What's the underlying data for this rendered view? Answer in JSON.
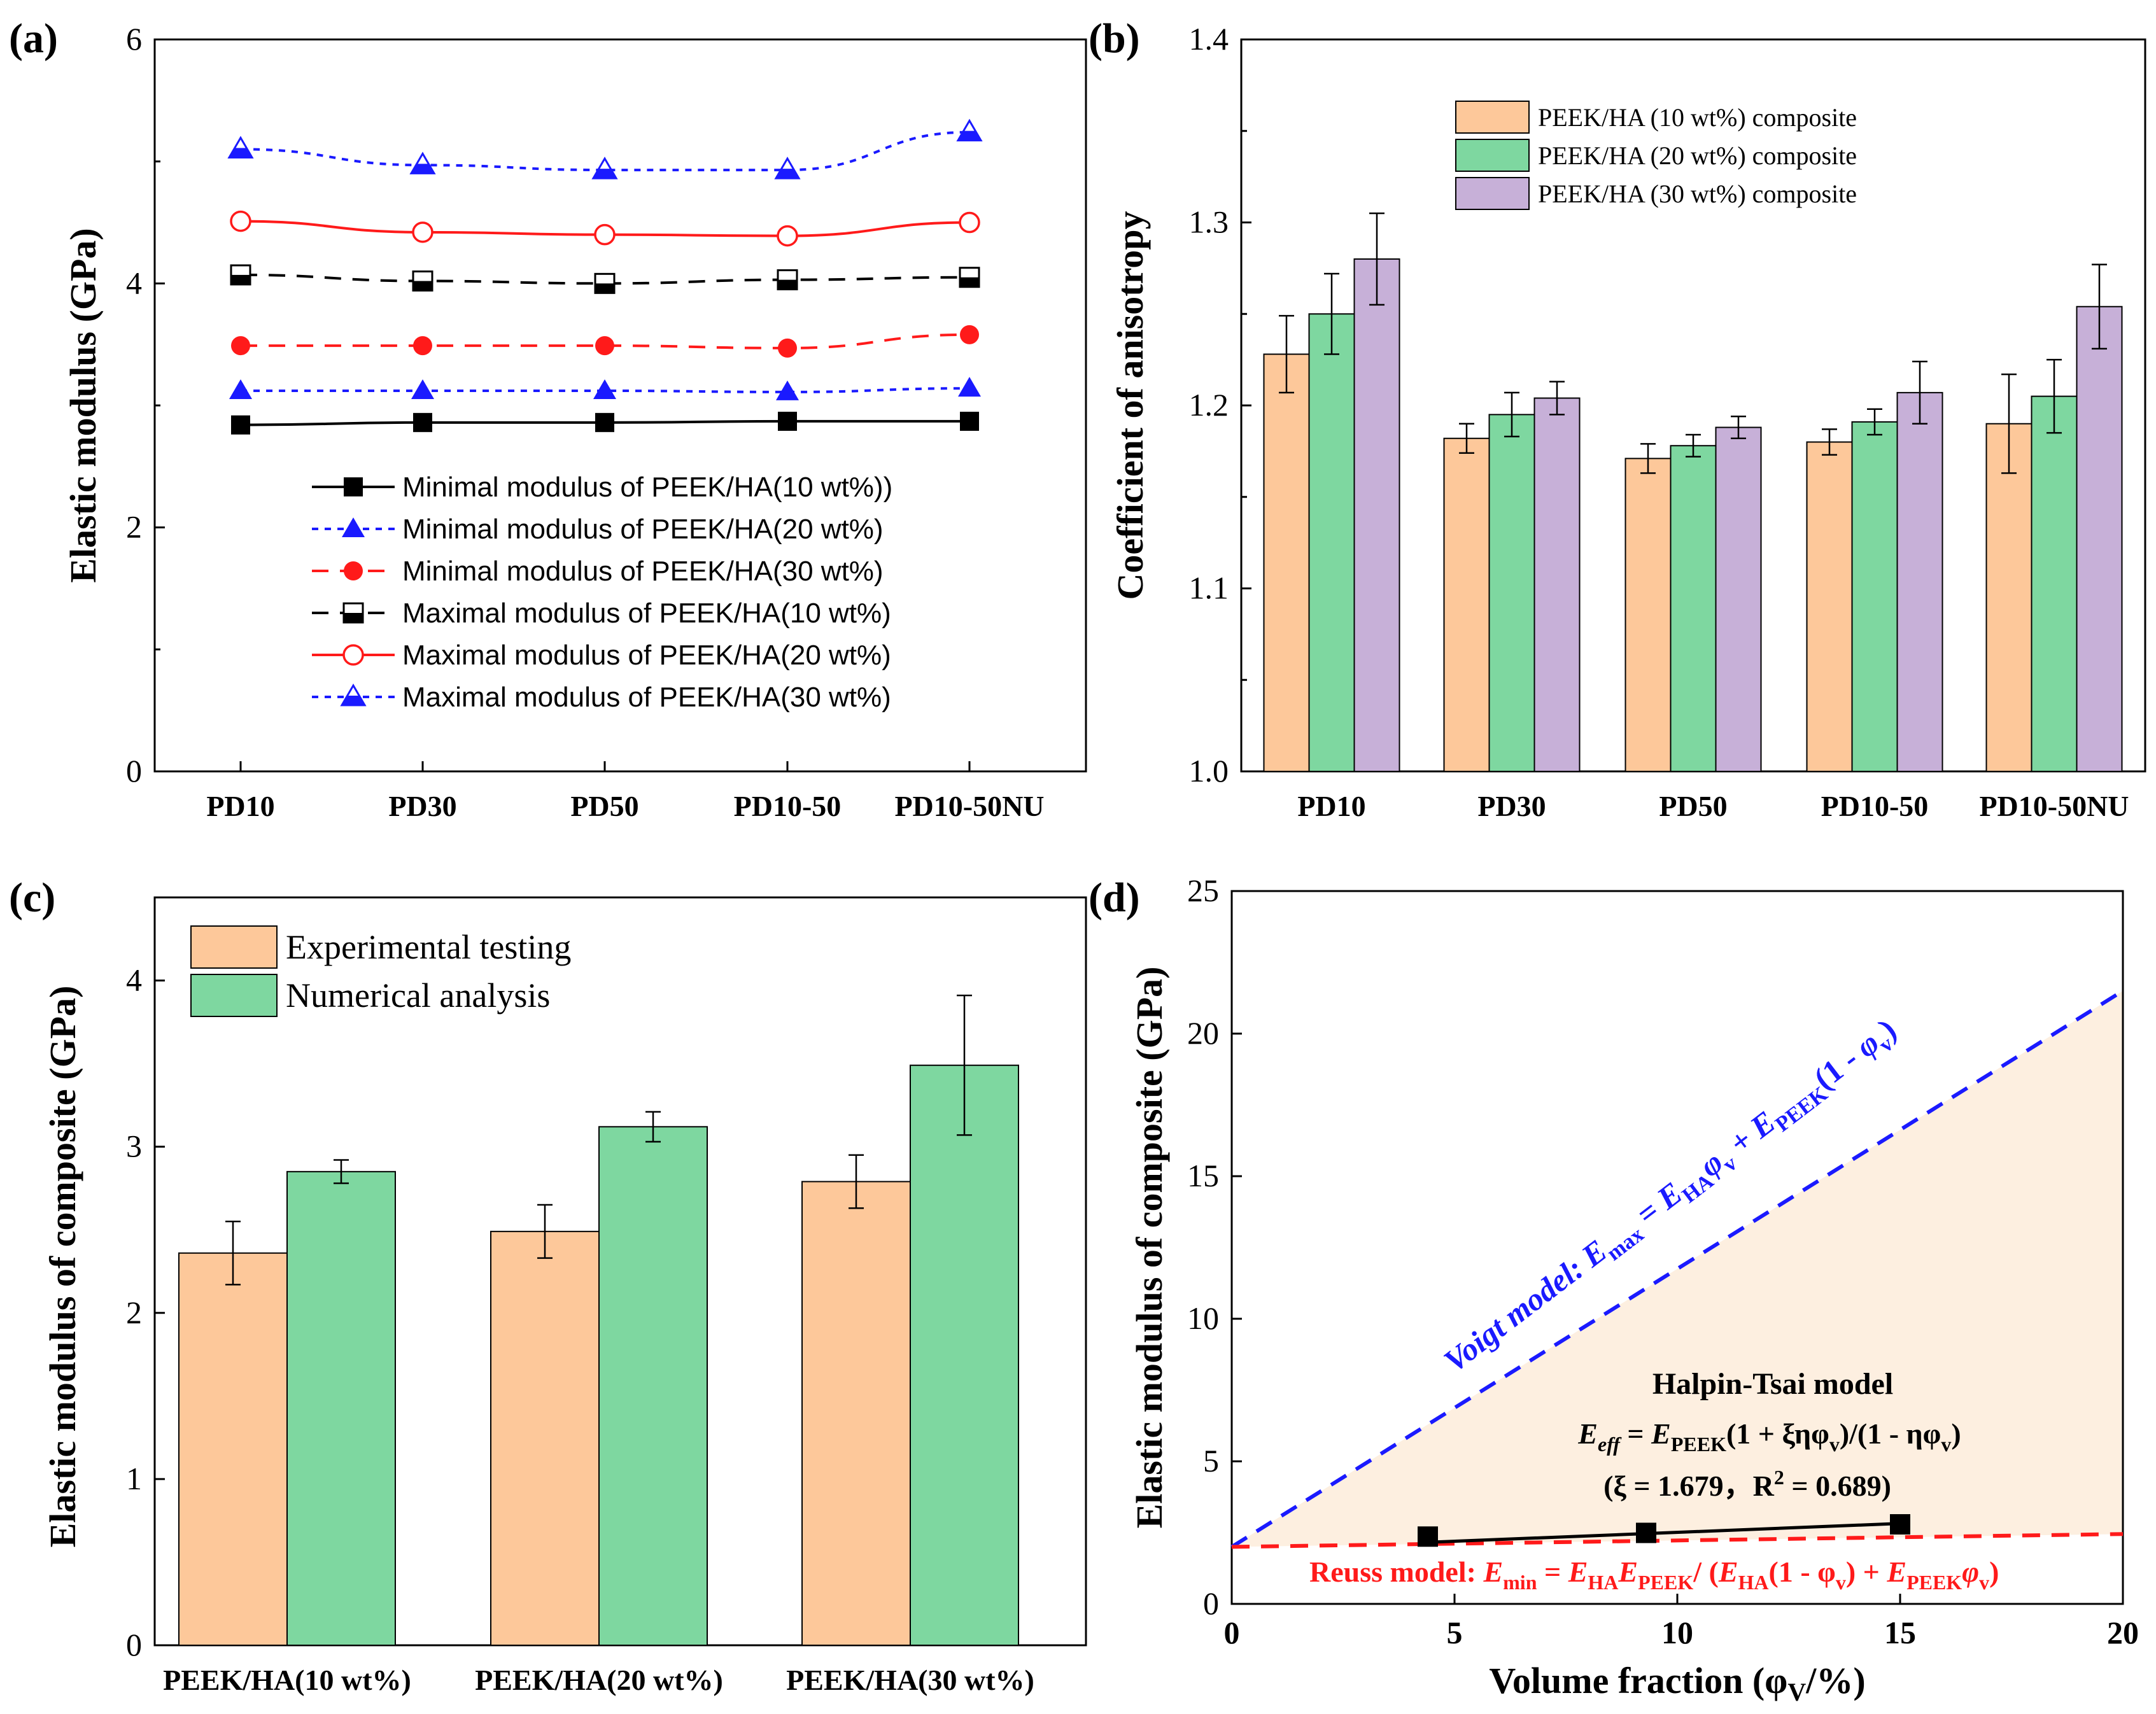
{
  "colors": {
    "black": "#000000",
    "blue": "#1a1aff",
    "red": "#ff1a1a",
    "orange": "#fdc89a",
    "green": "#7ed7a0",
    "purple": "#c7b0d8",
    "fill_d": "#fdefe0"
  },
  "chart_data": [
    {
      "id": "a",
      "panel_label": "(a)",
      "type": "line",
      "ylabel": "Elastic modulus (GPa)",
      "ylim": [
        0,
        6
      ],
      "yticks": [
        "0",
        "2",
        "4",
        "6"
      ],
      "categories": [
        "PD10",
        "PD30",
        "PD50",
        "PD10-50",
        "PD10-50NU"
      ],
      "series": [
        {
          "name": "Minimal modulus of PEEK/HA(10 wt%))",
          "values": [
            2.84,
            2.86,
            2.86,
            2.87,
            2.87
          ],
          "color": "#000000",
          "dash": "solid",
          "marker": "square-filled"
        },
        {
          "name": "Minimal modulus of PEEK/HA(20 wt%)",
          "values": [
            3.12,
            3.12,
            3.12,
            3.11,
            3.14
          ],
          "color": "#1a1aff",
          "dash": "dot",
          "marker": "triangle-filled"
        },
        {
          "name": "Minimal modulus of PEEK/HA(30 wt%)",
          "values": [
            3.49,
            3.49,
            3.49,
            3.47,
            3.58
          ],
          "color": "#ff1a1a",
          "dash": "dash",
          "marker": "circle-filled"
        },
        {
          "name": "Maximal modulus of PEEK/HA(10 wt%)",
          "values": [
            4.07,
            4.02,
            4.0,
            4.03,
            4.05
          ],
          "color": "#000000",
          "dash": "dash",
          "marker": "square-half"
        },
        {
          "name": "Maximal modulus of PEEK/HA(20 wt%)",
          "values": [
            4.51,
            4.42,
            4.4,
            4.39,
            4.5
          ],
          "color": "#ff1a1a",
          "dash": "solid",
          "marker": "circle-open"
        },
        {
          "name": "Maximal modulus of PEEK/HA(30 wt%)",
          "values": [
            5.1,
            4.97,
            4.93,
            4.93,
            5.24
          ],
          "color": "#1a1aff",
          "dash": "dot",
          "marker": "triangle-half"
        }
      ]
    },
    {
      "id": "b",
      "panel_label": "(b)",
      "type": "bar",
      "ylabel": "Coefficient of anisotropy",
      "ylim": [
        1.0,
        1.4
      ],
      "yticks": [
        "1.0",
        "1.1",
        "1.2",
        "1.3",
        "1.4"
      ],
      "categories": [
        "PD10",
        "PD30",
        "PD50",
        "PD10-50",
        "PD10-50NU"
      ],
      "series": [
        {
          "name": "PEEK/HA (10 wt%) composite",
          "values": [
            1.228,
            1.182,
            1.171,
            1.18,
            1.19
          ],
          "errors": [
            0.021,
            0.008,
            0.008,
            0.007,
            0.027
          ],
          "color": "#fdc89a"
        },
        {
          "name": "PEEK/HA (20 wt%) composite",
          "values": [
            1.25,
            1.195,
            1.178,
            1.191,
            1.205
          ],
          "errors": [
            0.022,
            0.012,
            0.006,
            0.007,
            0.02
          ],
          "color": "#7ed7a0"
        },
        {
          "name": "PEEK/HA (30 wt%) composite",
          "values": [
            1.28,
            1.204,
            1.188,
            1.207,
            1.254
          ],
          "errors": [
            0.025,
            0.009,
            0.006,
            0.017,
            0.023
          ],
          "color": "#c7b0d8"
        }
      ]
    },
    {
      "id": "c",
      "panel_label": "(c)",
      "type": "bar",
      "ylabel": "Elastic modulus of composite (GPa)",
      "ylim": [
        0,
        4.5
      ],
      "yticks": [
        "0",
        "1",
        "2",
        "3",
        "4"
      ],
      "categories": [
        "PEEK/HA(10 wt%)",
        "PEEK/HA(20 wt%)",
        "PEEK/HA(30 wt%)"
      ],
      "series": [
        {
          "name": "Experimental testing",
          "values": [
            2.36,
            2.49,
            2.79
          ],
          "errors": [
            0.19,
            0.16,
            0.16
          ],
          "color": "#fdc89a"
        },
        {
          "name": "Numerical analysis",
          "values": [
            2.85,
            3.12,
            3.49
          ],
          "errors": [
            0.07,
            0.09,
            0.42
          ],
          "color": "#7ed7a0"
        }
      ]
    },
    {
      "id": "d",
      "panel_label": "(d)",
      "type": "scatter",
      "xlabel": "Volume fraction (φ",
      "xlabel_sub": "V",
      "xlabel_end": "/%)",
      "ylabel": "Elastic modulus of composite (GPa)",
      "xlim": [
        0,
        20
      ],
      "ylim": [
        0,
        25
      ],
      "xticks": [
        "0",
        "5",
        "10",
        "15",
        "20"
      ],
      "yticks": [
        "0",
        "5",
        "10",
        "15",
        "20",
        "25"
      ],
      "points": {
        "x": [
          4.4,
          9.3,
          15.0
        ],
        "y": [
          2.36,
          2.49,
          2.79
        ]
      },
      "fit_line": {
        "x": [
          4.4,
          15.0
        ],
        "y": [
          2.16,
          2.82
        ]
      },
      "voigt_line": {
        "x": [
          0,
          20
        ],
        "y": [
          2.0,
          21.5
        ]
      },
      "reuss_line": {
        "x": [
          0,
          20
        ],
        "y": [
          2.0,
          2.45
        ]
      },
      "voigt_label": {
        "prefix": "Voigt model: ",
        "e": "E",
        "max": "max",
        "eq": " = ",
        "eha": "E",
        "ha": "HA",
        "phi": "φ",
        "v": "v",
        "plus": " + ",
        "epeek": "E",
        "peek": "PEEK",
        "paren": "(1 - ",
        "close": ")"
      },
      "reuss_label": {
        "prefix": "Reuss model: ",
        "e": "E",
        "min": "min",
        "eq": " = ",
        "eha": "E",
        "ha": "HA",
        "epeek": "E",
        "peek": "PEEK",
        "div": "/ (",
        "eha2": "E",
        "ha2": "HA",
        "mid": "(1 - φ",
        "v": "v",
        "mid2": ") + ",
        "epeek2": "E",
        "peek2": "PEEK",
        "phi": "φ",
        "v2": "v",
        "end": ")"
      },
      "halpin_title": "Halpin-Tsai model",
      "halpin_eq": {
        "e": "E",
        "eff": "eff",
        "eq": " = ",
        "epeek": "E",
        "peek": "PEEK",
        "num": "(1 + ξηφ",
        "v1": "v",
        "mid": ")/(1 - ηφ",
        "v2": "v",
        "end": ")"
      },
      "halpin_params": {
        "a": "(ξ = 1.679，R",
        "sup": "2",
        "b": " = 0.689)"
      }
    }
  ]
}
